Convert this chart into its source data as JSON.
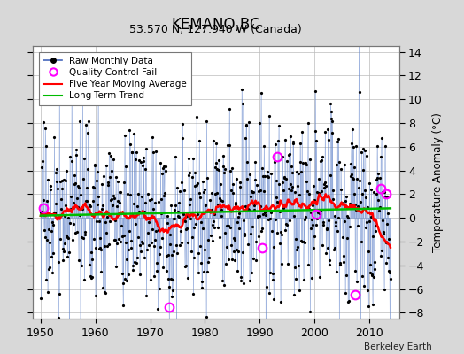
{
  "title": "KEMANO,BC",
  "subtitle": "53.570 N, 127.940 W (Canada)",
  "ylabel": "Temperature Anomaly (°C)",
  "credit": "Berkeley Earth",
  "xlim": [
    1948.5,
    2015.5
  ],
  "ylim": [
    -8.5,
    14.5
  ],
  "yticks": [
    -8,
    -6,
    -4,
    -2,
    0,
    2,
    4,
    6,
    8,
    10,
    12,
    14
  ],
  "xticks": [
    1950,
    1960,
    1970,
    1980,
    1990,
    2000,
    2010
  ],
  "bg_color": "#d8d8d8",
  "plot_bg": "#ffffff",
  "raw_line_color": "#6688cc",
  "raw_dot_color": "#000000",
  "mavg_color": "#ff0000",
  "trend_color": "#00bb00",
  "qc_color": "#ff00ff",
  "seed": 17,
  "years_start": 1950,
  "years_end": 2013,
  "qc_points": [
    [
      1950.5,
      0.8
    ],
    [
      1973.5,
      -7.5
    ],
    [
      1990.5,
      -2.5
    ],
    [
      1993.2,
      5.2
    ],
    [
      2000.3,
      0.3
    ],
    [
      2007.5,
      -6.5
    ],
    [
      2012.2,
      2.5
    ],
    [
      2013.2,
      2.0
    ]
  ]
}
